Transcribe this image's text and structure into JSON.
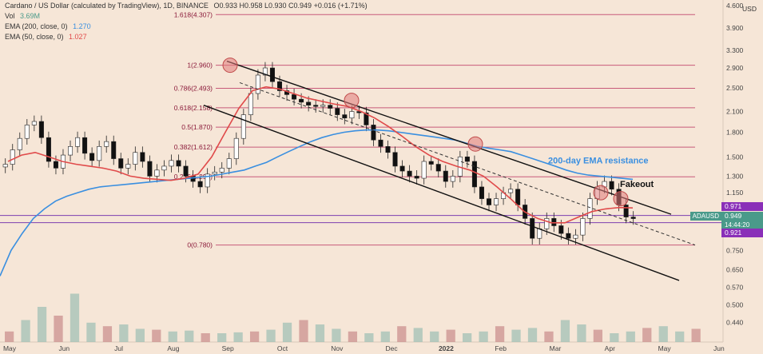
{
  "header": {
    "title": "Cardano / US Dollar (calculated by TradingView), 1D, BINANCE",
    "ohlc": "O0.933 H0.958 L0.930 C0.949 +0.016 (+1.71%)",
    "vol_label": "Vol",
    "vol_value": "3.69M",
    "ema200_label": "EMA (200, close, 0)",
    "ema200_value": "1.270",
    "ema50_label": "EMA (50, close, 0)",
    "ema50_value": "1.027"
  },
  "colors": {
    "background": "#f6e6d7",
    "up_candle": "#4a4a4a",
    "down_candle": "#111111",
    "ema200": "#3a8fe0",
    "ema50": "#e04a4a",
    "fib": "#c0426a",
    "horizontal": "#7d3fb0",
    "badge_current": "#4a9a8a",
    "badge_level": "#8a2fb8"
  },
  "chart_data": {
    "type": "candlestick",
    "title": "Cardano / US Dollar (calculated by TradingView), 1D, BINANCE",
    "currency": "USD",
    "y_scale": "log",
    "ylim": [
      0.38,
      4.8
    ],
    "y_ticks": [
      "4.600",
      "3.900",
      "3.300",
      "2.900",
      "2.500",
      "2.100",
      "1.800",
      "1.500",
      "1.300",
      "1.150",
      "0.971",
      "0.949",
      "0.921",
      "0.750",
      "0.650",
      "0.570",
      "0.500",
      "0.440"
    ],
    "x_ticks": [
      "May",
      "Jun",
      "Jul",
      "Aug",
      "Sep",
      "Oct",
      "Nov",
      "Dec",
      "2022",
      "Feb",
      "Mar",
      "Apr",
      "May",
      "Jun"
    ],
    "fib_levels": [
      {
        "label": "1.618(4.307)",
        "value": 4.307
      },
      {
        "label": "1(2.960)",
        "value": 2.96
      },
      {
        "label": "0.786(2.493)",
        "value": 2.493
      },
      {
        "label": "0.618(2.158)",
        "value": 2.158
      },
      {
        "label": "0.5(1.870)",
        "value": 1.87
      },
      {
        "label": "0.382(1.612)",
        "value": 1.612
      },
      {
        "label": "0.236(1.294)",
        "value": 1.294
      },
      {
        "label": "0(0.780)",
        "value": 0.78
      }
    ],
    "horizontal_levels": [
      0.971,
      0.921
    ],
    "series": [
      {
        "name": "Close",
        "values": [
          1.42,
          1.58,
          1.72,
          1.9,
          1.95,
          1.73,
          1.45,
          1.38,
          1.52,
          1.62,
          1.73,
          1.54,
          1.46,
          1.62,
          1.68,
          1.48,
          1.38,
          1.42,
          1.55,
          1.45,
          1.3,
          1.36,
          1.4,
          1.46,
          1.4,
          1.3,
          1.25,
          1.2,
          1.32,
          1.34,
          1.38,
          1.48,
          1.72,
          2.05,
          2.4,
          2.75,
          2.9,
          2.62,
          2.45,
          2.38,
          2.3,
          2.25,
          2.2,
          2.18,
          2.2,
          2.15,
          2.05,
          2.0,
          2.1,
          2.08,
          1.9,
          1.7,
          1.62,
          1.55,
          1.4,
          1.35,
          1.3,
          1.28,
          1.45,
          1.42,
          1.35,
          1.25,
          1.3,
          1.5,
          1.45,
          1.2,
          1.1,
          1.05,
          1.1,
          1.15,
          1.18,
          1.05,
          0.95,
          0.82,
          0.88,
          0.95,
          0.9,
          0.85,
          0.82,
          0.84,
          0.95,
          1.1,
          1.2,
          1.25,
          1.18,
          1.05,
          0.96,
          0.949
        ]
      },
      {
        "name": "EMA (200, close, 0)",
        "values": [
          0.62,
          0.75,
          0.85,
          0.95,
          1.02,
          1.08,
          1.12,
          1.15,
          1.18,
          1.2,
          1.21,
          1.22,
          1.23,
          1.24,
          1.25,
          1.26,
          1.27,
          1.28,
          1.29,
          1.3,
          1.32,
          1.34,
          1.36,
          1.4,
          1.44,
          1.5,
          1.56,
          1.62,
          1.68,
          1.73,
          1.77,
          1.8,
          1.82,
          1.83,
          1.83,
          1.82,
          1.8,
          1.78,
          1.76,
          1.74,
          1.72,
          1.7,
          1.66,
          1.62,
          1.6,
          1.58,
          1.56,
          1.52,
          1.48,
          1.44,
          1.4,
          1.36,
          1.33,
          1.31,
          1.3,
          1.29,
          1.28,
          1.27
        ]
      },
      {
        "name": "EMA (50, close, 0)",
        "values": [
          1.45,
          1.52,
          1.55,
          1.5,
          1.45,
          1.42,
          1.4,
          1.38,
          1.35,
          1.3,
          1.28,
          1.27,
          1.26,
          1.28,
          1.32,
          1.5,
          1.8,
          2.15,
          2.45,
          2.52,
          2.48,
          2.4,
          2.32,
          2.27,
          2.22,
          2.18,
          2.1,
          2.0,
          1.88,
          1.75,
          1.62,
          1.52,
          1.45,
          1.4,
          1.36,
          1.3,
          1.2,
          1.1,
          1.0,
          0.95,
          0.92,
          0.92,
          0.96,
          1.0,
          1.02,
          1.03,
          1.027
        ]
      }
    ],
    "volume": [
      0.12,
      0.25,
      0.4,
      0.3,
      0.55,
      0.22,
      0.18,
      0.2,
      0.15,
      0.14,
      0.12,
      0.13,
      0.1,
      0.1,
      0.11,
      0.12,
      0.14,
      0.22,
      0.25,
      0.2,
      0.15,
      0.12,
      0.1,
      0.12,
      0.18,
      0.16,
      0.12,
      0.14,
      0.1,
      0.12,
      0.18,
      0.14,
      0.16,
      0.12,
      0.25,
      0.2,
      0.14,
      0.1,
      0.12,
      0.16,
      0.18,
      0.12,
      0.15
    ],
    "annotations": [
      "200-day EMA resistance",
      "Fakeout"
    ],
    "badges": [
      {
        "label": "0.971"
      },
      {
        "label": "ADAUSD",
        "value": "0.949",
        "time": "14:44:20"
      },
      {
        "label": "0.921"
      }
    ]
  }
}
